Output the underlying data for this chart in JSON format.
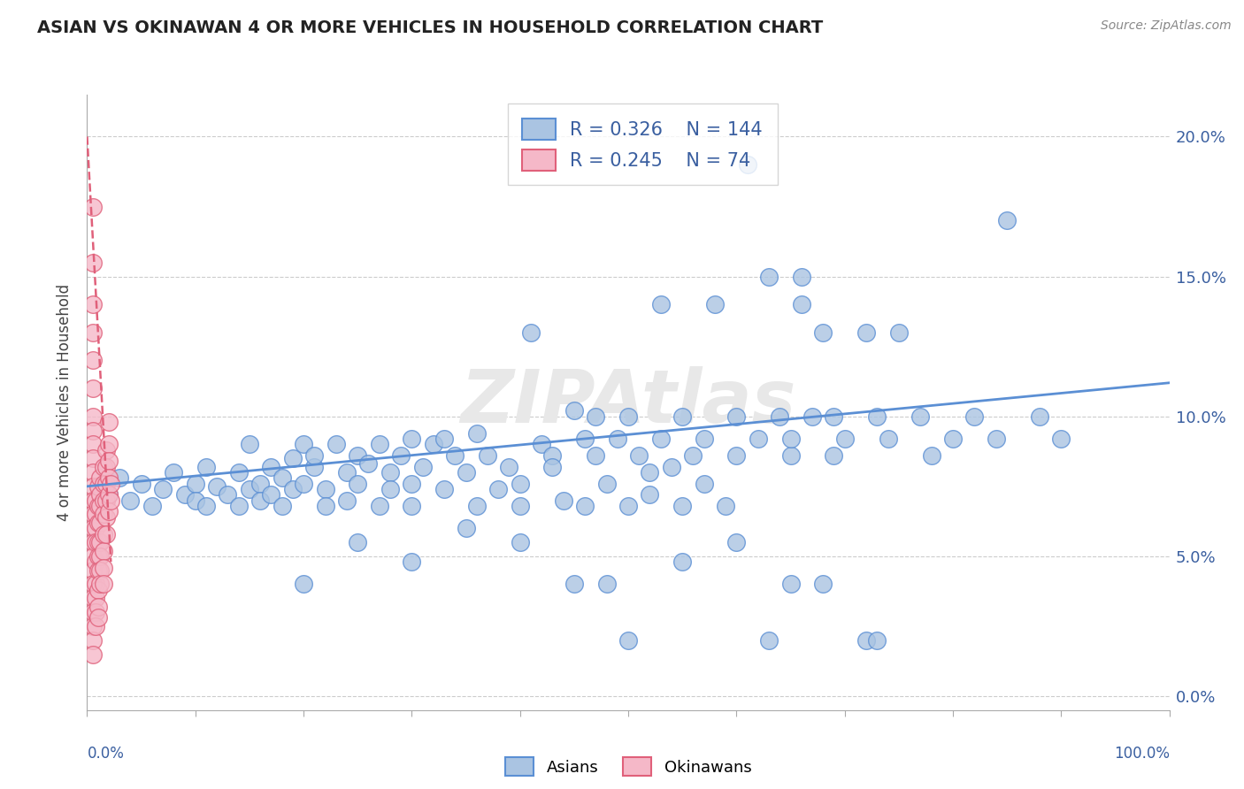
{
  "title": "ASIAN VS OKINAWAN 4 OR MORE VEHICLES IN HOUSEHOLD CORRELATION CHART",
  "source": "Source: ZipAtlas.com",
  "ylabel": "4 or more Vehicles in Household",
  "ytick_vals": [
    0.0,
    0.05,
    0.1,
    0.15,
    0.2
  ],
  "ytick_labels": [
    "0.0%",
    "5.0%",
    "10.0%",
    "15.0%",
    "20.0%"
  ],
  "xlim": [
    0.0,
    1.0
  ],
  "ylim": [
    -0.005,
    0.215
  ],
  "legend": {
    "asian_R": "0.326",
    "asian_N": "144",
    "okinawan_R": "0.245",
    "okinawan_N": "74"
  },
  "asian_color": "#aac4e2",
  "asian_edge_color": "#5b8fd4",
  "okinawan_color": "#f5b8c8",
  "okinawan_edge_color": "#e0607a",
  "asian_scatter": [
    [
      0.02,
      0.072
    ],
    [
      0.03,
      0.078
    ],
    [
      0.04,
      0.07
    ],
    [
      0.05,
      0.076
    ],
    [
      0.06,
      0.068
    ],
    [
      0.07,
      0.074
    ],
    [
      0.08,
      0.08
    ],
    [
      0.09,
      0.072
    ],
    [
      0.1,
      0.076
    ],
    [
      0.1,
      0.07
    ],
    [
      0.11,
      0.082
    ],
    [
      0.11,
      0.068
    ],
    [
      0.12,
      0.075
    ],
    [
      0.13,
      0.072
    ],
    [
      0.14,
      0.08
    ],
    [
      0.14,
      0.068
    ],
    [
      0.15,
      0.09
    ],
    [
      0.15,
      0.074
    ],
    [
      0.16,
      0.076
    ],
    [
      0.16,
      0.07
    ],
    [
      0.17,
      0.082
    ],
    [
      0.17,
      0.072
    ],
    [
      0.18,
      0.068
    ],
    [
      0.18,
      0.078
    ],
    [
      0.19,
      0.085
    ],
    [
      0.19,
      0.074
    ],
    [
      0.2,
      0.09
    ],
    [
      0.2,
      0.076
    ],
    [
      0.21,
      0.082
    ],
    [
      0.21,
      0.086
    ],
    [
      0.22,
      0.074
    ],
    [
      0.22,
      0.068
    ],
    [
      0.23,
      0.09
    ],
    [
      0.24,
      0.08
    ],
    [
      0.24,
      0.07
    ],
    [
      0.25,
      0.086
    ],
    [
      0.25,
      0.076
    ],
    [
      0.26,
      0.083
    ],
    [
      0.27,
      0.09
    ],
    [
      0.27,
      0.068
    ],
    [
      0.28,
      0.08
    ],
    [
      0.28,
      0.074
    ],
    [
      0.29,
      0.086
    ],
    [
      0.3,
      0.092
    ],
    [
      0.3,
      0.068
    ],
    [
      0.3,
      0.076
    ],
    [
      0.31,
      0.082
    ],
    [
      0.32,
      0.09
    ],
    [
      0.33,
      0.074
    ],
    [
      0.33,
      0.092
    ],
    [
      0.34,
      0.086
    ],
    [
      0.35,
      0.08
    ],
    [
      0.36,
      0.068
    ],
    [
      0.36,
      0.094
    ],
    [
      0.37,
      0.086
    ],
    [
      0.38,
      0.074
    ],
    [
      0.39,
      0.082
    ],
    [
      0.4,
      0.076
    ],
    [
      0.4,
      0.068
    ],
    [
      0.41,
      0.13
    ],
    [
      0.42,
      0.09
    ],
    [
      0.43,
      0.086
    ],
    [
      0.43,
      0.082
    ],
    [
      0.44,
      0.07
    ],
    [
      0.45,
      0.102
    ],
    [
      0.46,
      0.092
    ],
    [
      0.46,
      0.068
    ],
    [
      0.47,
      0.1
    ],
    [
      0.47,
      0.086
    ],
    [
      0.48,
      0.076
    ],
    [
      0.49,
      0.092
    ],
    [
      0.5,
      0.068
    ],
    [
      0.5,
      0.1
    ],
    [
      0.51,
      0.086
    ],
    [
      0.52,
      0.08
    ],
    [
      0.52,
      0.072
    ],
    [
      0.53,
      0.092
    ],
    [
      0.53,
      0.14
    ],
    [
      0.54,
      0.082
    ],
    [
      0.55,
      0.1
    ],
    [
      0.55,
      0.068
    ],
    [
      0.56,
      0.086
    ],
    [
      0.57,
      0.092
    ],
    [
      0.57,
      0.076
    ],
    [
      0.58,
      0.14
    ],
    [
      0.59,
      0.068
    ],
    [
      0.6,
      0.1
    ],
    [
      0.6,
      0.086
    ],
    [
      0.61,
      0.19
    ],
    [
      0.62,
      0.092
    ],
    [
      0.63,
      0.15
    ],
    [
      0.64,
      0.1
    ],
    [
      0.65,
      0.086
    ],
    [
      0.65,
      0.092
    ],
    [
      0.66,
      0.14
    ],
    [
      0.66,
      0.15
    ],
    [
      0.67,
      0.1
    ],
    [
      0.68,
      0.13
    ],
    [
      0.69,
      0.086
    ],
    [
      0.69,
      0.1
    ],
    [
      0.7,
      0.092
    ],
    [
      0.72,
      0.13
    ],
    [
      0.73,
      0.1
    ],
    [
      0.74,
      0.092
    ],
    [
      0.75,
      0.13
    ],
    [
      0.77,
      0.1
    ],
    [
      0.78,
      0.086
    ],
    [
      0.8,
      0.092
    ],
    [
      0.82,
      0.1
    ],
    [
      0.84,
      0.092
    ],
    [
      0.85,
      0.17
    ],
    [
      0.88,
      0.1
    ],
    [
      0.9,
      0.092
    ],
    [
      0.65,
      0.04
    ],
    [
      0.68,
      0.04
    ],
    [
      0.72,
      0.02
    ],
    [
      0.73,
      0.02
    ],
    [
      0.2,
      0.04
    ],
    [
      0.25,
      0.055
    ],
    [
      0.3,
      0.048
    ],
    [
      0.35,
      0.06
    ],
    [
      0.4,
      0.055
    ],
    [
      0.45,
      0.04
    ],
    [
      0.48,
      0.04
    ],
    [
      0.5,
      0.02
    ],
    [
      0.55,
      0.048
    ],
    [
      0.6,
      0.055
    ],
    [
      0.63,
      0.02
    ]
  ],
  "okinawan_scatter": [
    [
      0.005,
      0.175
    ],
    [
      0.005,
      0.155
    ],
    [
      0.005,
      0.14
    ],
    [
      0.005,
      0.13
    ],
    [
      0.005,
      0.12
    ],
    [
      0.005,
      0.11
    ],
    [
      0.005,
      0.1
    ],
    [
      0.005,
      0.095
    ],
    [
      0.005,
      0.09
    ],
    [
      0.005,
      0.085
    ],
    [
      0.005,
      0.08
    ],
    [
      0.005,
      0.075
    ],
    [
      0.005,
      0.07
    ],
    [
      0.005,
      0.065
    ],
    [
      0.005,
      0.06
    ],
    [
      0.005,
      0.055
    ],
    [
      0.005,
      0.05
    ],
    [
      0.005,
      0.045
    ],
    [
      0.005,
      0.04
    ],
    [
      0.005,
      0.035
    ],
    [
      0.005,
      0.03
    ],
    [
      0.005,
      0.025
    ],
    [
      0.005,
      0.02
    ],
    [
      0.005,
      0.015
    ],
    [
      0.008,
      0.07
    ],
    [
      0.008,
      0.065
    ],
    [
      0.008,
      0.06
    ],
    [
      0.008,
      0.055
    ],
    [
      0.008,
      0.048
    ],
    [
      0.008,
      0.04
    ],
    [
      0.008,
      0.035
    ],
    [
      0.008,
      0.03
    ],
    [
      0.008,
      0.025
    ],
    [
      0.01,
      0.075
    ],
    [
      0.01,
      0.068
    ],
    [
      0.01,
      0.062
    ],
    [
      0.01,
      0.055
    ],
    [
      0.01,
      0.05
    ],
    [
      0.01,
      0.045
    ],
    [
      0.01,
      0.038
    ],
    [
      0.01,
      0.032
    ],
    [
      0.01,
      0.028
    ],
    [
      0.012,
      0.078
    ],
    [
      0.012,
      0.072
    ],
    [
      0.012,
      0.068
    ],
    [
      0.012,
      0.062
    ],
    [
      0.012,
      0.055
    ],
    [
      0.012,
      0.05
    ],
    [
      0.012,
      0.045
    ],
    [
      0.012,
      0.04
    ],
    [
      0.015,
      0.082
    ],
    [
      0.015,
      0.076
    ],
    [
      0.015,
      0.07
    ],
    [
      0.015,
      0.065
    ],
    [
      0.015,
      0.058
    ],
    [
      0.015,
      0.052
    ],
    [
      0.015,
      0.046
    ],
    [
      0.015,
      0.04
    ],
    [
      0.018,
      0.088
    ],
    [
      0.018,
      0.082
    ],
    [
      0.018,
      0.076
    ],
    [
      0.018,
      0.07
    ],
    [
      0.018,
      0.064
    ],
    [
      0.018,
      0.058
    ],
    [
      0.02,
      0.098
    ],
    [
      0.02,
      0.09
    ],
    [
      0.02,
      0.084
    ],
    [
      0.02,
      0.078
    ],
    [
      0.02,
      0.072
    ],
    [
      0.02,
      0.066
    ],
    [
      0.022,
      0.076
    ],
    [
      0.022,
      0.07
    ]
  ],
  "asian_trendline_x": [
    0.0,
    1.0
  ],
  "asian_trendline_y": [
    0.075,
    0.112
  ],
  "okinawan_trendline_x": [
    0.0,
    0.022
  ],
  "okinawan_trendline_y": [
    0.2,
    0.048
  ]
}
